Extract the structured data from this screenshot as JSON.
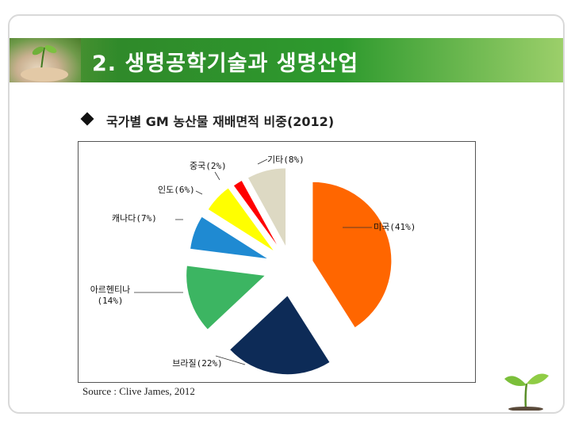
{
  "slide": {
    "title": "2. 생명공학기술과 생명산업",
    "subtitle": "국가별 GM 농산물 재배면적 비중(2012)",
    "source": "Source : Clive James, 2012"
  },
  "chart_data": {
    "type": "pie",
    "title": "",
    "slices": [
      {
        "name": "미국",
        "value": 41,
        "label": "미국(41%)",
        "color": "#ff6600"
      },
      {
        "name": "브라질",
        "value": 22,
        "label": "브라질(22%)",
        "color": "#0d2b57"
      },
      {
        "name": "아르헨티나",
        "value": 14,
        "label": "아르헨티나\n(14%)",
        "color": "#3cb562"
      },
      {
        "name": "캐나다",
        "value": 7,
        "label": "캐나다(7%)",
        "color": "#1f8ad2"
      },
      {
        "name": "인도",
        "value": 6,
        "label": "인도(6%)",
        "color": "#ffff00"
      },
      {
        "name": "중국",
        "value": 2,
        "label": "중국(2%)",
        "color": "#ff0000"
      },
      {
        "name": "기타",
        "value": 8,
        "label": "기타(8%)",
        "color": "#ddd9c3"
      }
    ],
    "legend": "none"
  },
  "icons": {
    "title_photo": "hands-holding-seedling-icon",
    "bullet": "diamond-bullet-icon",
    "corner": "sprout-icon"
  }
}
